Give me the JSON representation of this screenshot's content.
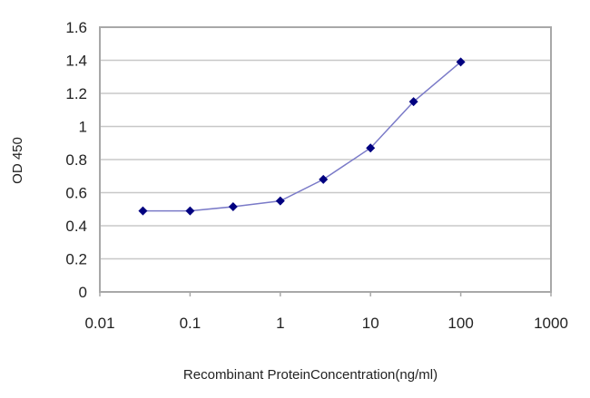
{
  "chart_data": {
    "type": "line",
    "title": "",
    "xlabel": "Recombinant ProteinConcentration(ng/ml)",
    "ylabel": "OD 450",
    "xscale": "log",
    "xlim": [
      0.01,
      1000
    ],
    "ylim": [
      0,
      1.6
    ],
    "xticks": [
      "0.01",
      "0.1",
      "1",
      "10",
      "100",
      "1000"
    ],
    "yticks": [
      "0",
      "0.2",
      "0.4",
      "0.6",
      "0.8",
      "1",
      "1.2",
      "1.4",
      "1.6"
    ],
    "grid": "horizontal",
    "series": [
      {
        "x": [
          0.03,
          0.1,
          0.3,
          1,
          3,
          10,
          30,
          100
        ],
        "y": [
          0.49,
          0.49,
          0.515,
          0.55,
          0.68,
          0.87,
          1.15,
          1.39
        ]
      }
    ],
    "colors": {
      "marker": "#000080",
      "line": "#7a7ac8",
      "grid": "#c8c8c8",
      "frame": "#a8a8a8"
    }
  }
}
